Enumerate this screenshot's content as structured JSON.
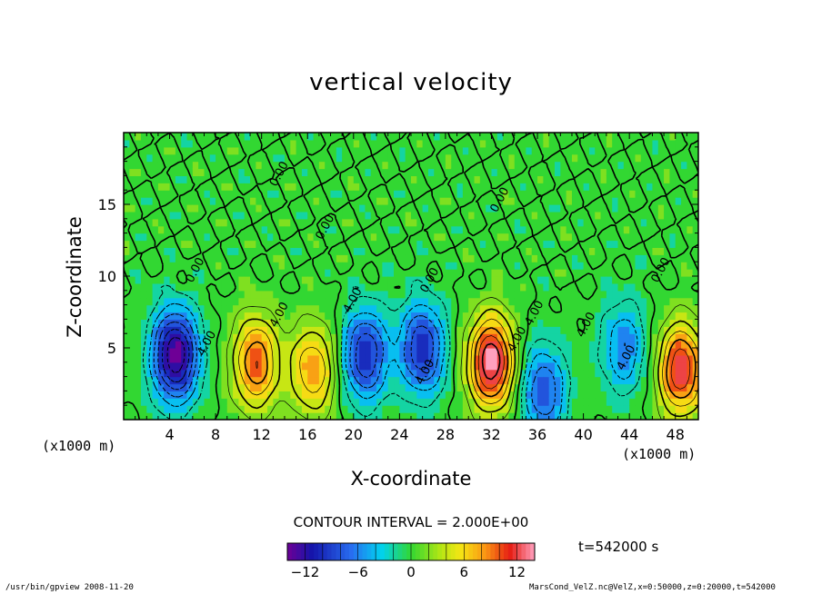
{
  "chart_data": {
    "type": "heatmap",
    "title": "vertical velocity",
    "xlabel": "X-coordinate",
    "ylabel": "Z-coordinate",
    "x_unit_label": "(x1000 m)",
    "xlim": [
      0,
      50
    ],
    "ylim": [
      0,
      20
    ],
    "xticks": [
      4,
      8,
      12,
      16,
      20,
      24,
      28,
      32,
      36,
      40,
      44,
      48
    ],
    "yticks": [
      5,
      10,
      15
    ],
    "contour_interval_text": "CONTOUR INTERVAL = 2.000E+00",
    "contour_labels": [
      {
        "text": "0.00",
        "x": 13.8,
        "z": 17.0
      },
      {
        "text": "0.00",
        "x": 6.5,
        "z": 10.3
      },
      {
        "text": "0.00",
        "x": 17.8,
        "z": 13.3
      },
      {
        "text": "0.00",
        "x": 26.9,
        "z": 9.6
      },
      {
        "text": "0.00",
        "x": 33.0,
        "z": 15.2
      },
      {
        "text": "0.00",
        "x": 47.0,
        "z": 10.3
      },
      {
        "text": "4.00",
        "x": 7.5,
        "z": 5.2
      },
      {
        "text": "4.00",
        "x": 13.8,
        "z": 7.2
      },
      {
        "text": "4.00",
        "x": 20.2,
        "z": 8.2
      },
      {
        "text": "4.00",
        "x": 26.5,
        "z": 3.2
      },
      {
        "text": "4.00",
        "x": 34.5,
        "z": 5.5
      },
      {
        "text": "4.00",
        "x": 36.0,
        "z": 7.3
      },
      {
        "text": "4.00",
        "x": 40.5,
        "z": 6.5
      },
      {
        "text": "4.00",
        "x": 44.0,
        "z": 4.2
      }
    ],
    "extrema": [
      {
        "x": 4.5,
        "z": 4.5,
        "value": -14,
        "kind": "downdraft"
      },
      {
        "x": 11.5,
        "z": 4.0,
        "value": 10,
        "kind": "updraft"
      },
      {
        "x": 16.5,
        "z": 3.5,
        "value": 8,
        "kind": "updraft"
      },
      {
        "x": 21.0,
        "z": 4.5,
        "value": -10,
        "kind": "downdraft"
      },
      {
        "x": 26.0,
        "z": 5.0,
        "value": -10,
        "kind": "downdraft"
      },
      {
        "x": 32.0,
        "z": 4.0,
        "value": 14,
        "kind": "updraft"
      },
      {
        "x": 36.5,
        "z": 2.0,
        "value": -8,
        "kind": "downdraft"
      },
      {
        "x": 43.5,
        "z": 5.0,
        "value": -6,
        "kind": "downdraft"
      },
      {
        "x": 48.5,
        "z": 3.5,
        "value": 12,
        "kind": "updraft"
      }
    ],
    "colorbar": {
      "ticks": [
        -12,
        -6,
        0,
        6,
        12
      ],
      "tick_labels": [
        "−12",
        "−6",
        "0",
        "6",
        "12"
      ],
      "range": [
        -14,
        14
      ],
      "interval": 2
    },
    "time_label": "t=542000 s"
  },
  "footer": {
    "left": "/usr/bin/gpview  2008-11-20",
    "right": "MarsCond_VelZ.nc@VelZ,x=0:50000,z=0:20000,t=542000"
  }
}
